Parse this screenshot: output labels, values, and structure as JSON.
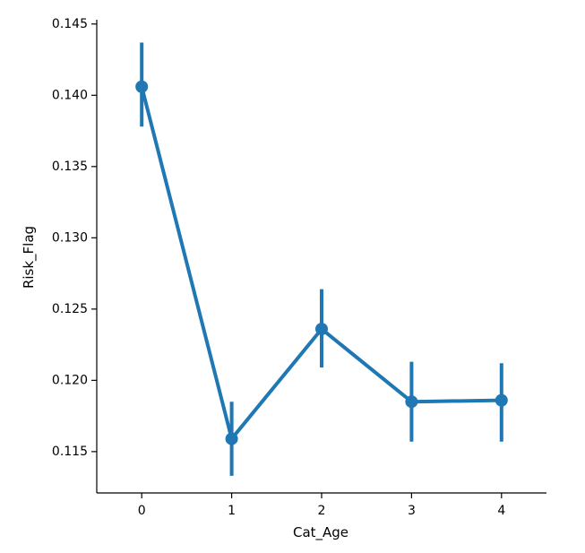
{
  "chart_data": {
    "type": "line",
    "title": "",
    "xlabel": "Cat_Age",
    "ylabel": "Risk_Flag",
    "categories": [
      "0",
      "1",
      "2",
      "3",
      "4"
    ],
    "series": [
      {
        "color": "#1f77b4",
        "values": [
          0.1406,
          0.1159,
          0.1236,
          0.1185,
          0.1186
        ],
        "ci_low": [
          0.1378,
          0.1133,
          0.1209,
          0.1157,
          0.1157
        ],
        "ci_high": [
          0.1437,
          0.1185,
          0.1264,
          0.1213,
          0.1212
        ]
      }
    ],
    "ylim": [
      0.1121,
      0.1453
    ],
    "yticks": [
      0.115,
      0.12,
      0.125,
      0.13,
      0.135,
      0.14,
      0.145
    ],
    "ytick_labels": [
      "0.115",
      "0.120",
      "0.125",
      "0.130",
      "0.135",
      "0.140",
      "0.145"
    ],
    "xlim": [
      -0.5,
      4.5
    ],
    "grid": false,
    "legend": "none",
    "spines": "left-bottom"
  }
}
